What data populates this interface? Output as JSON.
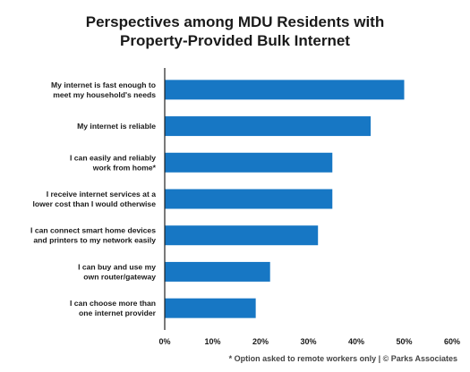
{
  "chart_data": {
    "type": "bar",
    "orientation": "horizontal",
    "title_line1": "Perspectives among MDU Residents with",
    "title_line2": "Property-Provided Bulk Internet",
    "categories": [
      [
        "My internet is fast enough to",
        "meet my household's needs"
      ],
      [
        "My internet is reliable"
      ],
      [
        "I can easily and reliably",
        "work from home*"
      ],
      [
        "I receive internet services at a",
        "lower cost than I would otherwise"
      ],
      [
        "I can connect smart home devices",
        "and printers to my network easily"
      ],
      [
        "I can buy and use my",
        "own router/gateway"
      ],
      [
        "I can choose more than",
        "one internet provider"
      ]
    ],
    "values": [
      50,
      43,
      35,
      35,
      32,
      22,
      19
    ],
    "xlim": [
      0,
      60
    ],
    "xticks": [
      "0%",
      "10%",
      "20%",
      "30%",
      "40%",
      "50%",
      "60%"
    ],
    "grid": false,
    "bar_color": "#1777c4",
    "axis_color": "#222222"
  },
  "footer": "* Option asked to remote workers only  |  © Parks Associates"
}
